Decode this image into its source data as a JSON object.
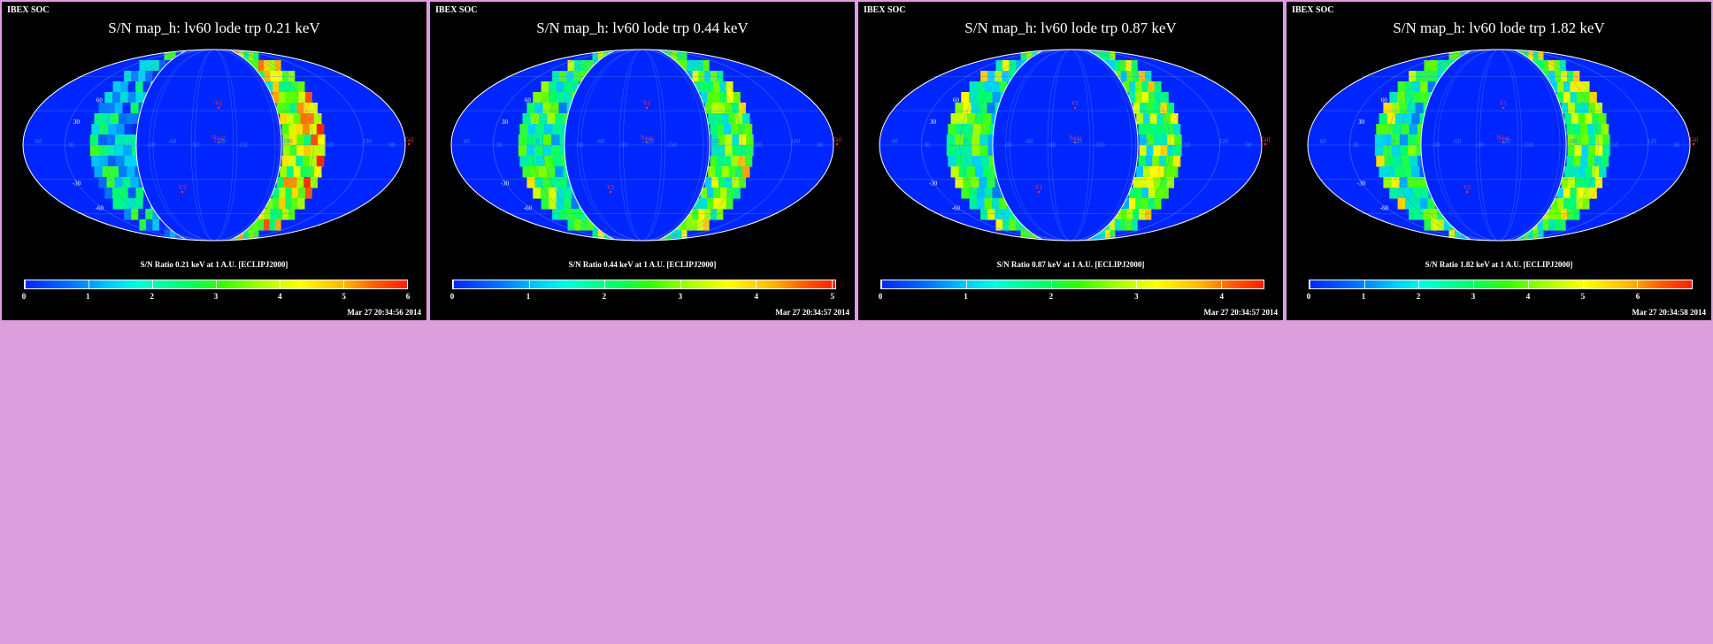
{
  "panels": [
    {
      "header": "IBEX SOC",
      "title": "S/N  map_h: lv60 lode trp 0.21 keV",
      "colorbar_label": "S/N Ratio 0.21 keV at 1 A.U. [ECLIPJ2000]",
      "ticks": [
        "0",
        "1",
        "2",
        "3",
        "4",
        "5",
        "6"
      ],
      "cb_max": 6,
      "timestamp": "Mar 27 20:34:56 2014"
    },
    {
      "header": "IBEX SOC",
      "title": "S/N  map_h: lv60 lode trp 0.44 keV",
      "colorbar_label": "S/N Ratio 0.44 keV at 1 A.U. [ECLIPJ2000]",
      "ticks": [
        "0",
        "1",
        "2",
        "3",
        "4",
        "5"
      ],
      "cb_max": 5.05,
      "timestamp": "Mar 27 20:34:57 2014"
    },
    {
      "header": "IBEX SOC",
      "title": "S/N  map_h: lv60 lode trp 0.87 keV",
      "colorbar_label": "S/N Ratio 0.87 keV at 1 A.U. [ECLIPJ2000]",
      "ticks": [
        "0",
        "1",
        "2",
        "3",
        "4"
      ],
      "cb_max": 4.5,
      "timestamp": "Mar 27 20:34:57 2014"
    },
    {
      "header": "IBEX SOC",
      "title": "S/N  map_h: lv60 lode trp 1.82 keV",
      "colorbar_label": "S/N Ratio 1.82 keV at 1 A.U. [ECLIPJ2000]",
      "ticks": [
        "0",
        "1",
        "2",
        "3",
        "4",
        "5",
        "6"
      ],
      "cb_max": 7,
      "timestamp": "Mar 27 20:34:58 2014"
    }
  ],
  "map_labels": {
    "v1": "V1",
    "v2": "V2",
    "nose": "Nose",
    "tail": "Tail",
    "lon_labels": [
      "60",
      "30",
      "0",
      "-30",
      "-60",
      "-90",
      "-120",
      "-150",
      "-180",
      "150",
      "120",
      "90"
    ],
    "lat_labels": [
      "60",
      "30",
      "-30",
      "-60"
    ]
  },
  "colors": {
    "background": "#dc9edc",
    "panel": "#000000",
    "map_fill": "#0026ff",
    "grid": "#5a7cff",
    "marker": "#ff3030"
  }
}
